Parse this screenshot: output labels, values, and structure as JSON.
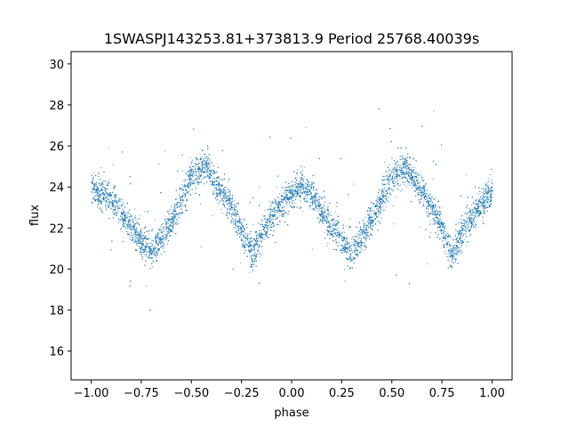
{
  "chart_data": {
    "type": "scatter",
    "title": "1SWASPJ143253.81+373813.9 Period 25768.40039s",
    "xlabel": "phase",
    "ylabel": "flux",
    "xlim": [
      -1.1,
      1.1
    ],
    "ylim": [
      14.6,
      30.6
    ],
    "xticks": [
      -1.0,
      -0.75,
      -0.5,
      -0.25,
      0.0,
      0.25,
      0.5,
      0.75,
      1.0
    ],
    "xtick_labels": [
      "−1.00",
      "−0.75",
      "−0.50",
      "−0.25",
      "0.00",
      "0.25",
      "0.50",
      "0.75",
      "1.00"
    ],
    "yticks": [
      16,
      18,
      20,
      22,
      24,
      26,
      28,
      30
    ],
    "ytick_labels": [
      "16",
      "18",
      "20",
      "22",
      "24",
      "26",
      "28",
      "30"
    ],
    "grid": false,
    "marker_color": "#1f77b4",
    "series": [
      {
        "x": [
          -1.0,
          -0.9,
          -0.8,
          -0.7,
          -0.6,
          -0.5,
          -0.43,
          -0.3,
          -0.2,
          -0.1,
          0.0,
          0.05,
          0.1,
          0.2,
          0.3,
          0.4,
          0.5,
          0.57,
          0.7,
          0.8,
          0.9,
          1.0
        ],
        "values": [
          24.0,
          23.4,
          22.0,
          20.8,
          22.4,
          24.6,
          25.0,
          23.0,
          20.8,
          22.6,
          23.8,
          24.0,
          23.6,
          22.0,
          20.8,
          22.4,
          24.6,
          25.0,
          23.0,
          20.8,
          22.6,
          23.8
        ]
      }
    ]
  }
}
